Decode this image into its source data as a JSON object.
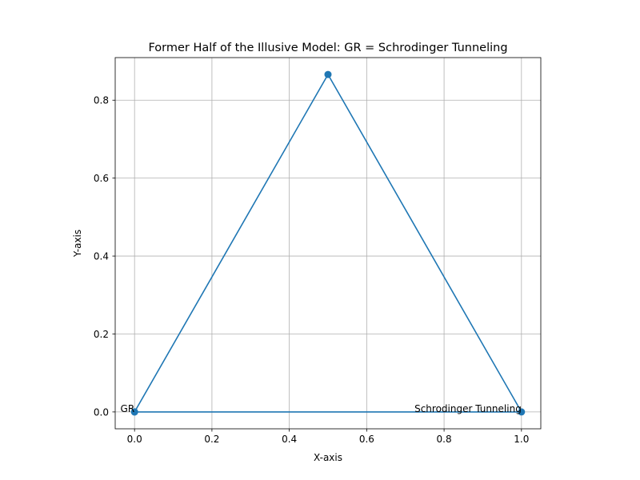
{
  "chart_data": {
    "type": "line",
    "title": "Former Half of the Illusive Model: GR = Schrodinger Tunneling",
    "xlabel": "X-axis",
    "ylabel": "Y-axis",
    "xlim": [
      -0.05,
      1.05
    ],
    "ylim": [
      -0.0433,
      0.9093
    ],
    "xticks": [
      0.0,
      0.2,
      0.4,
      0.6,
      0.8,
      1.0
    ],
    "xtick_labels": [
      "0.0",
      "0.2",
      "0.4",
      "0.6",
      "0.8",
      "1.0"
    ],
    "yticks": [
      0.0,
      0.2,
      0.4,
      0.6,
      0.8
    ],
    "ytick_labels": [
      "0.0",
      "0.2",
      "0.4",
      "0.6",
      "0.8"
    ],
    "grid": true,
    "series": [
      {
        "color": "#1f77b4",
        "marker": "circle",
        "x": [
          0.0,
          0.5,
          1.0,
          0.0
        ],
        "y": [
          0.0,
          0.866,
          0.0,
          0.0
        ]
      }
    ],
    "annotations": [
      {
        "text": "GR",
        "x": 0.0,
        "y": 0.0,
        "align": "right"
      },
      {
        "text": "Schrodinger Tunneling",
        "x": 1.0,
        "y": 0.0,
        "align": "right"
      }
    ]
  }
}
